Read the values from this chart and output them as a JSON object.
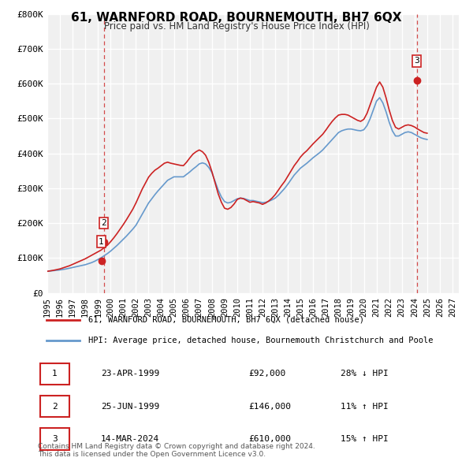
{
  "title": "61, WARNFORD ROAD, BOURNEMOUTH, BH7 6QX",
  "subtitle": "Price paid vs. HM Land Registry's House Price Index (HPI)",
  "xlabel": "",
  "ylabel": "",
  "background_color": "#ffffff",
  "plot_bg_color": "#f0f0f0",
  "grid_color": "#ffffff",
  "hpi_line_color": "#6699cc",
  "price_line_color": "#cc2222",
  "ylim": [
    0,
    800000
  ],
  "xlim_start": 1995.0,
  "xlim_end": 2027.5,
  "yticks": [
    0,
    100000,
    200000,
    300000,
    400000,
    500000,
    600000,
    700000,
    800000
  ],
  "ytick_labels": [
    "£0",
    "£100K",
    "£200K",
    "£300K",
    "£400K",
    "£500K",
    "£600K",
    "£700K",
    "£800K"
  ],
  "xticks": [
    1995,
    1996,
    1997,
    1998,
    1999,
    2000,
    2001,
    2002,
    2003,
    2004,
    2005,
    2006,
    2007,
    2008,
    2009,
    2010,
    2011,
    2012,
    2013,
    2014,
    2015,
    2016,
    2017,
    2018,
    2019,
    2020,
    2021,
    2022,
    2023,
    2024,
    2025,
    2026,
    2027
  ],
  "sale_dates": [
    1999.306,
    1999.486,
    2024.196
  ],
  "sale_prices": [
    92000,
    146000,
    610000
  ],
  "sale_labels": [
    "1",
    "2",
    "3"
  ],
  "vline_dates": [
    1999.486,
    2024.196
  ],
  "vline_colors": [
    "#cc2222",
    "#cc2222"
  ],
  "legend_label_red": "61, WARNFORD ROAD, BOURNEMOUTH, BH7 6QX (detached house)",
  "legend_label_blue": "HPI: Average price, detached house, Bournemouth Christchurch and Poole",
  "table_data": [
    {
      "label": "1",
      "date": "23-APR-1999",
      "price": "£92,000",
      "hpi": "28% ↓ HPI"
    },
    {
      "label": "2",
      "date": "25-JUN-1999",
      "price": "£146,000",
      "hpi": "11% ↑ HPI"
    },
    {
      "label": "3",
      "date": "14-MAR-2024",
      "price": "£610,000",
      "hpi": "15% ↑ HPI"
    }
  ],
  "footnote": "Contains HM Land Registry data © Crown copyright and database right 2024.\nThis data is licensed under the Open Government Licence v3.0.",
  "hpi_years": [
    1995.0,
    1995.25,
    1995.5,
    1995.75,
    1996.0,
    1996.25,
    1996.5,
    1996.75,
    1997.0,
    1997.25,
    1997.5,
    1997.75,
    1998.0,
    1998.25,
    1998.5,
    1998.75,
    1999.0,
    1999.25,
    1999.5,
    1999.75,
    2000.0,
    2000.25,
    2000.5,
    2000.75,
    2001.0,
    2001.25,
    2001.5,
    2001.75,
    2002.0,
    2002.25,
    2002.5,
    2002.75,
    2003.0,
    2003.25,
    2003.5,
    2003.75,
    2004.0,
    2004.25,
    2004.5,
    2004.75,
    2005.0,
    2005.25,
    2005.5,
    2005.75,
    2006.0,
    2006.25,
    2006.5,
    2006.75,
    2007.0,
    2007.25,
    2007.5,
    2007.75,
    2008.0,
    2008.25,
    2008.5,
    2008.75,
    2009.0,
    2009.25,
    2009.5,
    2009.75,
    2010.0,
    2010.25,
    2010.5,
    2010.75,
    2011.0,
    2011.25,
    2011.5,
    2011.75,
    2012.0,
    2012.25,
    2012.5,
    2012.75,
    2013.0,
    2013.25,
    2013.5,
    2013.75,
    2014.0,
    2014.25,
    2014.5,
    2014.75,
    2015.0,
    2015.25,
    2015.5,
    2015.75,
    2016.0,
    2016.25,
    2016.5,
    2016.75,
    2017.0,
    2017.25,
    2017.5,
    2017.75,
    2018.0,
    2018.25,
    2018.5,
    2018.75,
    2019.0,
    2019.25,
    2019.5,
    2019.75,
    2020.0,
    2020.25,
    2020.5,
    2020.75,
    2021.0,
    2021.25,
    2021.5,
    2021.75,
    2022.0,
    2022.25,
    2022.5,
    2022.75,
    2023.0,
    2023.25,
    2023.5,
    2023.75,
    2024.0,
    2024.25,
    2024.5,
    2024.75,
    2025.0
  ],
  "hpi_values": [
    62000,
    63000,
    64000,
    65000,
    66000,
    67500,
    69000,
    71000,
    73000,
    75000,
    77000,
    79000,
    81000,
    84000,
    87000,
    91000,
    96000,
    101000,
    107000,
    113000,
    120000,
    128000,
    136000,
    145000,
    154000,
    163000,
    173000,
    183000,
    194000,
    210000,
    226000,
    242000,
    258000,
    270000,
    282000,
    293000,
    303000,
    313000,
    323000,
    328000,
    333000,
    333000,
    333000,
    333000,
    340000,
    347000,
    355000,
    362000,
    370000,
    373000,
    370000,
    360000,
    345000,
    320000,
    295000,
    275000,
    262000,
    258000,
    260000,
    265000,
    270000,
    272000,
    271000,
    268000,
    265000,
    265000,
    263000,
    261000,
    259000,
    260000,
    263000,
    267000,
    272000,
    280000,
    290000,
    300000,
    312000,
    325000,
    338000,
    348000,
    358000,
    365000,
    372000,
    380000,
    388000,
    395000,
    402000,
    410000,
    420000,
    430000,
    440000,
    450000,
    460000,
    465000,
    468000,
    470000,
    470000,
    468000,
    466000,
    465000,
    468000,
    480000,
    500000,
    525000,
    550000,
    560000,
    545000,
    520000,
    490000,
    465000,
    450000,
    450000,
    455000,
    460000,
    462000,
    460000,
    455000,
    450000,
    445000,
    442000,
    440000
  ],
  "price_years": [
    1995.0,
    1995.25,
    1995.5,
    1995.75,
    1996.0,
    1996.25,
    1996.5,
    1996.75,
    1997.0,
    1997.25,
    1997.5,
    1997.75,
    1998.0,
    1998.25,
    1998.5,
    1998.75,
    1999.0,
    1999.25,
    1999.5,
    1999.75,
    2000.0,
    2000.25,
    2000.5,
    2000.75,
    2001.0,
    2001.25,
    2001.5,
    2001.75,
    2002.0,
    2002.25,
    2002.5,
    2002.75,
    2003.0,
    2003.25,
    2003.5,
    2003.75,
    2004.0,
    2004.25,
    2004.5,
    2004.75,
    2005.0,
    2005.25,
    2005.5,
    2005.75,
    2006.0,
    2006.25,
    2006.5,
    2006.75,
    2007.0,
    2007.25,
    2007.5,
    2007.75,
    2008.0,
    2008.25,
    2008.5,
    2008.75,
    2009.0,
    2009.25,
    2009.5,
    2009.75,
    2010.0,
    2010.25,
    2010.5,
    2010.75,
    2011.0,
    2011.25,
    2011.5,
    2011.75,
    2012.0,
    2012.25,
    2012.5,
    2012.75,
    2013.0,
    2013.25,
    2013.5,
    2013.75,
    2014.0,
    2014.25,
    2014.5,
    2014.75,
    2015.0,
    2015.25,
    2015.5,
    2015.75,
    2016.0,
    2016.25,
    2016.5,
    2016.75,
    2017.0,
    2017.25,
    2017.5,
    2017.75,
    2018.0,
    2018.25,
    2018.5,
    2018.75,
    2019.0,
    2019.25,
    2019.5,
    2019.75,
    2020.0,
    2020.25,
    2020.5,
    2020.75,
    2021.0,
    2021.25,
    2021.5,
    2021.75,
    2022.0,
    2022.25,
    2022.5,
    2022.75,
    2023.0,
    2023.25,
    2023.5,
    2023.75,
    2024.0,
    2024.25,
    2024.5,
    2024.75,
    2025.0
  ],
  "price_values": [
    62000,
    63500,
    65000,
    67000,
    69000,
    72000,
    75000,
    78000,
    82000,
    86000,
    90000,
    94000,
    98000,
    103000,
    108000,
    113000,
    118000,
    123000,
    130000,
    137000,
    147000,
    158000,
    170000,
    183000,
    196000,
    210000,
    225000,
    240000,
    258000,
    278000,
    298000,
    315000,
    332000,
    343000,
    352000,
    358000,
    365000,
    372000,
    375000,
    372000,
    370000,
    368000,
    366000,
    365000,
    375000,
    387000,
    398000,
    405000,
    410000,
    405000,
    395000,
    375000,
    348000,
    316000,
    284000,
    260000,
    243000,
    240000,
    245000,
    255000,
    268000,
    272000,
    270000,
    265000,
    260000,
    262000,
    260000,
    258000,
    254000,
    258000,
    264000,
    272000,
    282000,
    295000,
    308000,
    320000,
    335000,
    350000,
    365000,
    377000,
    390000,
    400000,
    408000,
    418000,
    428000,
    437000,
    446000,
    455000,
    467000,
    480000,
    492000,
    502000,
    510000,
    512000,
    512000,
    510000,
    505000,
    500000,
    495000,
    492000,
    498000,
    515000,
    540000,
    565000,
    590000,
    605000,
    590000,
    560000,
    525000,
    495000,
    475000,
    470000,
    475000,
    480000,
    482000,
    480000,
    476000,
    470000,
    465000,
    460000,
    458000
  ]
}
